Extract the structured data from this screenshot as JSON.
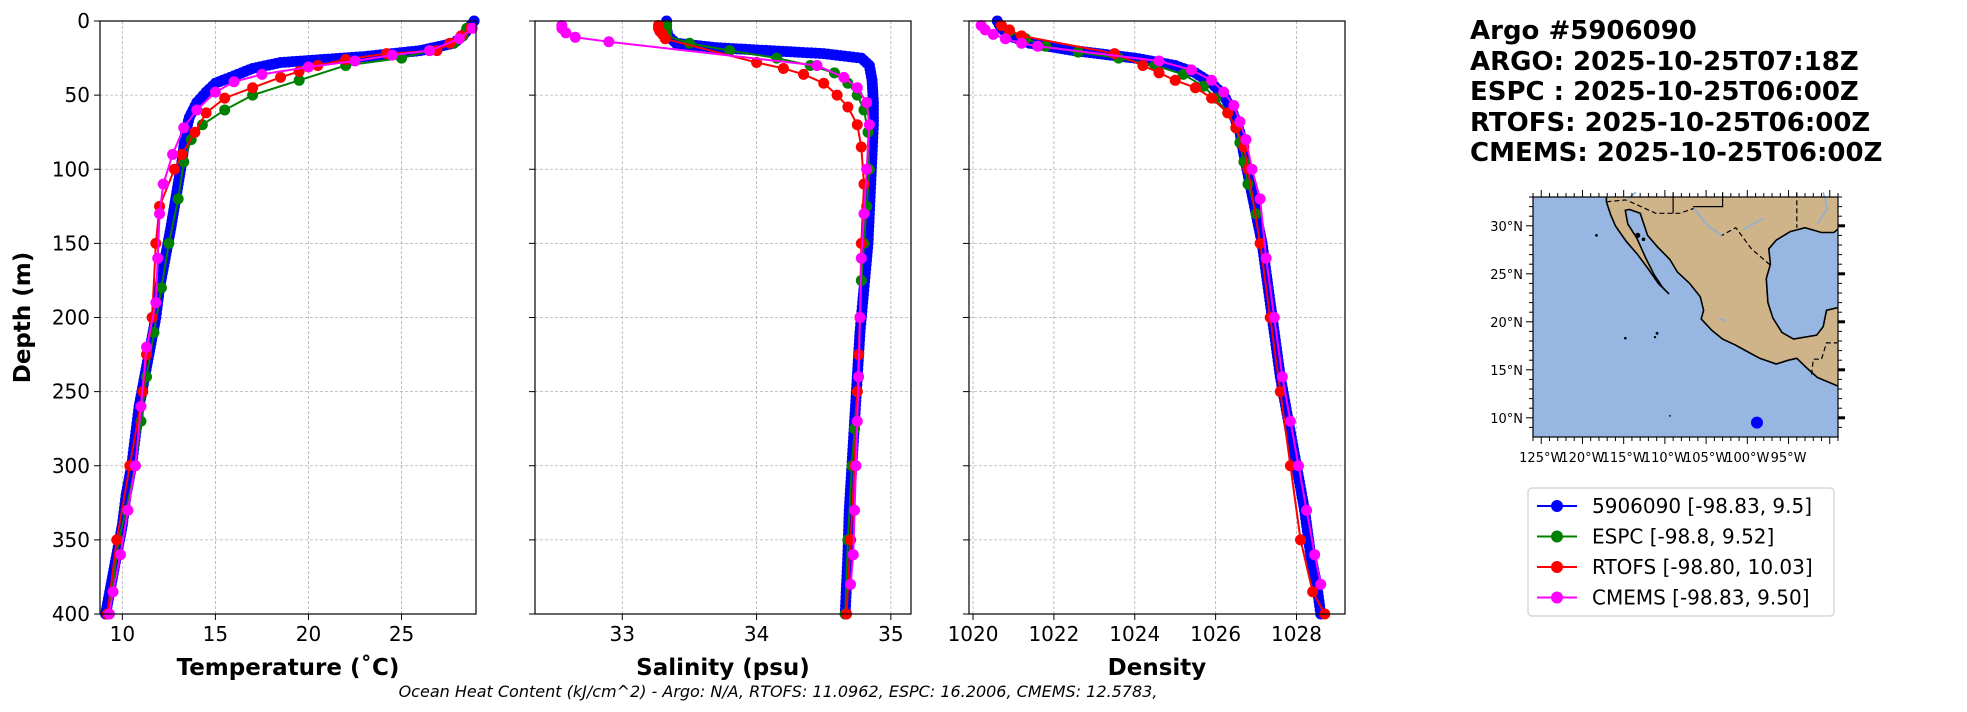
{
  "header": {
    "argo_id": "Argo #5906090",
    "argo_time": "ARGO: 2025-10-25T07:18Z",
    "espc_time": "ESPC : 2025-10-25T06:00Z",
    "rtofs_time": "RTOFS: 2025-10-25T06:00Z",
    "cmems_time": "CMEMS: 2025-10-25T06:00Z"
  },
  "footer": {
    "ohc_text": "Ocean Heat Content (kJ/cm^2) - Argo: N/A,  RTOFS: 11.0962,  ESPC: 16.2006,  CMEMS: 12.5783,"
  },
  "colors": {
    "argo": "#0000ff",
    "espc": "#008000",
    "rtofs": "#ff0000",
    "cmems": "#ff00ff",
    "ocean": "#97b6e1",
    "land": "#cfb389",
    "grid": "#b0b0b0"
  },
  "map": {
    "lat_ticks": [
      "30°N",
      "25°N",
      "20°N",
      "15°N",
      "10°N"
    ],
    "lat_values": [
      30,
      25,
      20,
      15,
      10
    ],
    "lon_ticks": [
      "125°W",
      "120°W",
      "115°W",
      "110°W",
      "105°W",
      "100°W",
      "95°W"
    ],
    "lon_values": [
      -125,
      -120,
      -115,
      -110,
      -105,
      -100,
      -95
    ],
    "lon_range": [
      -126,
      -89
    ],
    "lat_range": [
      8,
      33
    ],
    "float_location": {
      "lon": -98.83,
      "lat": 9.5
    }
  },
  "legend": {
    "entries": [
      {
        "label": "5906090 [-98.83, 9.5]",
        "series": "argo"
      },
      {
        "label": "ESPC [-98.8, 9.52]",
        "series": "espc"
      },
      {
        "label": "RTOFS [-98.80, 10.03]",
        "series": "rtofs"
      },
      {
        "label": "CMEMS [-98.83, 9.50]",
        "series": "cmems"
      }
    ]
  },
  "chart_data": [
    {
      "type": "line",
      "title": "",
      "xlabel": "Temperature (˚C)",
      "ylabel": "Depth (m)",
      "xlim": [
        8.8,
        29.0
      ],
      "ylim": [
        400,
        0
      ],
      "xticks": [
        10,
        15,
        20,
        25
      ],
      "xtick_labels": [
        "10",
        "15",
        "20",
        "25"
      ],
      "yticks": [
        0,
        50,
        100,
        150,
        200,
        250,
        300,
        350,
        400
      ],
      "ytick_labels": [
        "0",
        "50",
        "100",
        "150",
        "200",
        "250",
        "300",
        "350",
        "400"
      ],
      "grid": true,
      "series": [
        {
          "name": "argo",
          "color": "#0000ff",
          "dense": true,
          "x": [
            28.9,
            28.6,
            28.3,
            27.8,
            26.0,
            23.0,
            18.5,
            17.0,
            16.0,
            15.0,
            14.5,
            14.0,
            13.6,
            13.4,
            13.3,
            13.2,
            13.0,
            12.8,
            12.6,
            12.3,
            12.0,
            11.8,
            11.5,
            11.2,
            10.9,
            10.7,
            10.5,
            10.2,
            10.0,
            9.7,
            9.4,
            9.1
          ],
          "y": [
            0,
            5,
            10,
            15,
            20,
            24,
            28,
            32,
            37,
            42,
            48,
            55,
            65,
            75,
            85,
            95,
            110,
            125,
            140,
            160,
            180,
            200,
            220,
            240,
            260,
            280,
            300,
            320,
            340,
            360,
            380,
            400
          ]
        },
        {
          "name": "espc",
          "color": "#008000",
          "dense": false,
          "x": [
            28.5,
            28.3,
            27.8,
            26.5,
            25.0,
            22.0,
            19.5,
            17.0,
            15.5,
            14.3,
            13.7,
            13.3,
            13.0,
            12.5,
            12.1,
            11.7,
            11.3,
            11.0,
            10.7,
            10.2,
            9.8,
            9.3
          ],
          "y": [
            5,
            10,
            15,
            20,
            25,
            30,
            40,
            50,
            60,
            70,
            80,
            95,
            120,
            150,
            180,
            210,
            240,
            270,
            300,
            330,
            350,
            400
          ]
        },
        {
          "name": "rtofs",
          "color": "#ff0000",
          "dense": false,
          "x": [
            28.7,
            28.2,
            27.6,
            26.9,
            24.2,
            22.0,
            20.5,
            19.5,
            18.5,
            17.0,
            15.5,
            14.5,
            13.9,
            13.2,
            12.8,
            12.0,
            11.8,
            11.6,
            11.3,
            11.1,
            10.4,
            9.7,
            9.2
          ],
          "y": [
            5,
            10,
            15,
            20,
            22,
            26,
            30,
            34,
            38,
            45,
            52,
            62,
            75,
            90,
            100,
            125,
            150,
            200,
            225,
            250,
            300,
            350,
            400
          ]
        },
        {
          "name": "cmems",
          "color": "#ff00ff",
          "dense": false,
          "x": [
            28.8,
            28.1,
            26.5,
            24.5,
            22.5,
            20.0,
            17.5,
            16.0,
            15.0,
            14.0,
            13.3,
            12.7,
            12.2,
            12.0,
            11.9,
            11.8,
            11.3,
            11.0,
            10.7,
            10.3,
            9.9,
            9.5,
            9.3
          ],
          "y": [
            5,
            12,
            20,
            23,
            27,
            31,
            36,
            41,
            48,
            60,
            72,
            90,
            110,
            130,
            160,
            190,
            220,
            260,
            300,
            330,
            360,
            385,
            400
          ]
        }
      ]
    },
    {
      "type": "line",
      "title": "",
      "xlabel": "Salinity (psu)",
      "ylabel": "",
      "xlim": [
        32.35,
        35.15
      ],
      "ylim": [
        400,
        0
      ],
      "xticks": [
        33,
        34,
        35
      ],
      "xtick_labels": [
        "33",
        "34",
        "35"
      ],
      "yticks": [
        0,
        50,
        100,
        150,
        200,
        250,
        300,
        350,
        400
      ],
      "grid": true,
      "series": [
        {
          "name": "argo",
          "color": "#0000ff",
          "dense": true,
          "x": [
            33.33,
            33.33,
            33.34,
            33.4,
            33.7,
            34.1,
            34.5,
            34.78,
            34.84,
            34.86,
            34.87,
            34.87,
            34.86,
            34.85,
            34.84,
            34.83,
            34.81,
            34.79,
            34.77,
            34.75,
            34.73,
            34.71,
            34.69,
            34.68,
            34.67,
            34.66
          ],
          "y": [
            0,
            5,
            10,
            15,
            18,
            20,
            22,
            25,
            30,
            40,
            55,
            70,
            90,
            110,
            130,
            150,
            170,
            190,
            210,
            240,
            270,
            300,
            330,
            360,
            380,
            400
          ]
        },
        {
          "name": "espc",
          "color": "#008000",
          "dense": false,
          "x": [
            33.33,
            33.33,
            33.33,
            33.5,
            33.8,
            34.15,
            34.4,
            34.58,
            34.68,
            34.75,
            34.8,
            34.83,
            34.84,
            34.82,
            34.8,
            34.78,
            34.77,
            34.76,
            34.75,
            34.73,
            34.71,
            34.68,
            34.66
          ],
          "y": [
            3,
            6,
            10,
            15,
            20,
            25,
            30,
            35,
            42,
            50,
            60,
            75,
            100,
            125,
            150,
            175,
            200,
            225,
            250,
            275,
            300,
            350,
            400
          ]
        },
        {
          "name": "rtofs",
          "color": "#ff0000",
          "dense": false,
          "x": [
            33.27,
            33.27,
            33.28,
            33.3,
            33.32,
            34.0,
            34.2,
            34.35,
            34.5,
            34.6,
            34.68,
            34.75,
            34.78,
            34.8,
            34.78,
            34.77,
            34.76,
            34.75,
            34.73,
            34.7,
            34.67
          ],
          "y": [
            3,
            5,
            7,
            9,
            12,
            28,
            32,
            36,
            42,
            50,
            58,
            70,
            85,
            110,
            150,
            200,
            225,
            250,
            300,
            350,
            400
          ]
        },
        {
          "name": "cmems",
          "color": "#ff00ff",
          "dense": false,
          "x": [
            32.55,
            32.55,
            32.58,
            32.65,
            32.9,
            34.45,
            34.65,
            34.75,
            34.82,
            34.84,
            34.82,
            34.8,
            34.78,
            34.77,
            34.76,
            34.75,
            34.74,
            34.73,
            34.72,
            34.7
          ],
          "y": [
            3,
            5,
            8,
            11,
            14,
            30,
            38,
            45,
            55,
            70,
            100,
            130,
            160,
            200,
            240,
            270,
            300,
            330,
            360,
            380
          ]
        }
      ]
    },
    {
      "type": "line",
      "title": "",
      "xlabel": "Density",
      "ylabel": "",
      "xlim": [
        1019.9,
        1029.2
      ],
      "ylim": [
        400,
        0
      ],
      "xticks": [
        1020,
        1022,
        1024,
        1026,
        1028
      ],
      "xtick_labels": [
        "1020",
        "1022",
        "1024",
        "1026",
        "1028"
      ],
      "yticks": [
        0,
        50,
        100,
        150,
        200,
        250,
        300,
        350,
        400
      ],
      "grid": true,
      "series": [
        {
          "name": "argo",
          "color": "#0000ff",
          "dense": true,
          "x": [
            1020.6,
            1020.7,
            1020.9,
            1021.4,
            1022.5,
            1024.0,
            1025.0,
            1025.5,
            1025.9,
            1026.2,
            1026.4,
            1026.6,
            1026.7,
            1026.85,
            1027.0,
            1027.15,
            1027.3,
            1027.45,
            1027.6,
            1027.8,
            1028.0,
            1028.2,
            1028.35,
            1028.5,
            1028.6
          ],
          "y": [
            0,
            5,
            10,
            15,
            20,
            25,
            30,
            35,
            42,
            50,
            60,
            75,
            90,
            110,
            130,
            150,
            180,
            210,
            240,
            270,
            300,
            330,
            360,
            380,
            400
          ]
        },
        {
          "name": "espc",
          "color": "#008000",
          "dense": false,
          "x": [
            1020.7,
            1020.9,
            1021.3,
            1021.8,
            1022.6,
            1023.6,
            1024.5,
            1025.2,
            1025.7,
            1026.0,
            1026.3,
            1026.5,
            1026.6,
            1026.7,
            1026.8,
            1027.0
          ],
          "y": [
            3,
            7,
            12,
            17,
            21,
            25,
            30,
            36,
            44,
            52,
            62,
            72,
            82,
            95,
            110,
            130
          ]
        },
        {
          "name": "rtofs",
          "color": "#ff0000",
          "dense": false,
          "x": [
            1020.7,
            1020.9,
            1021.2,
            1023.5,
            1024.2,
            1024.6,
            1025.0,
            1025.5,
            1025.9,
            1026.3,
            1026.5,
            1026.7,
            1026.8,
            1027.1,
            1027.35,
            1027.6,
            1027.85,
            1028.1,
            1028.4,
            1028.7
          ],
          "y": [
            3,
            6,
            10,
            22,
            30,
            35,
            40,
            45,
            52,
            62,
            72,
            85,
            100,
            150,
            200,
            250,
            300,
            350,
            385,
            400
          ]
        },
        {
          "name": "cmems",
          "color": "#ff00ff",
          "dense": false,
          "x": [
            1020.2,
            1020.3,
            1020.5,
            1020.8,
            1021.2,
            1021.6,
            1024.6,
            1025.4,
            1025.9,
            1026.2,
            1026.45,
            1026.6,
            1026.75,
            1026.9,
            1027.1,
            1027.25,
            1027.45,
            1027.65,
            1027.85,
            1028.05,
            1028.25,
            1028.45,
            1028.6
          ],
          "y": [
            3,
            6,
            9,
            12,
            15,
            17,
            27,
            33,
            40,
            48,
            57,
            68,
            80,
            100,
            120,
            160,
            200,
            240,
            270,
            300,
            330,
            360,
            380
          ]
        }
      ]
    }
  ]
}
